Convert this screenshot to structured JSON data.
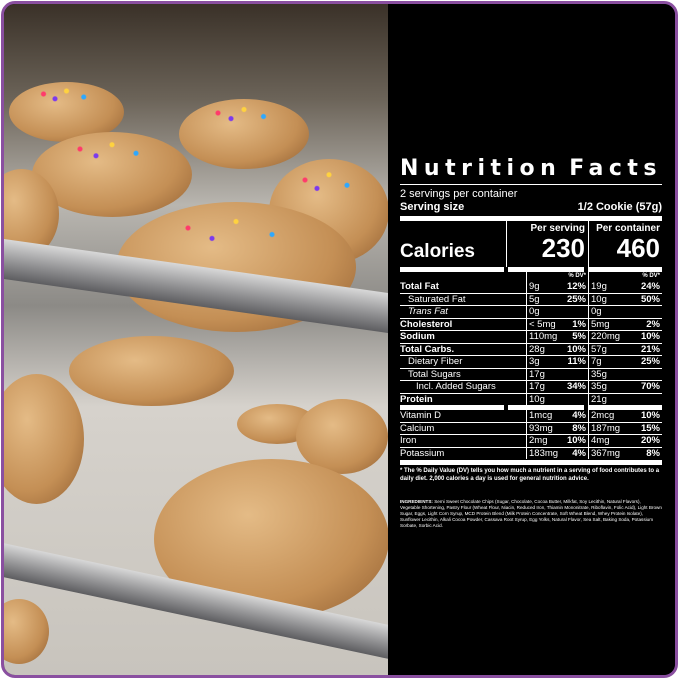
{
  "frame_color": "#8a4fa0",
  "label": {
    "title_left": "Nutrition",
    "title_right": "Facts",
    "servings_per_container": "2 servings per container",
    "serving_size_label": "Serving size",
    "serving_size_value": "1/2 Cookie (57g)",
    "per_serving_header": "Per serving",
    "per_container_header": "Per container",
    "calories_label": "Calories",
    "calories_per_serving": "230",
    "calories_per_container": "460",
    "dv_header": "% DV*",
    "rows": [
      {
        "name": "Total Fat",
        "s_amt": "9g",
        "s_dv": "12%",
        "c_amt": "19g",
        "c_dv": "24%"
      },
      {
        "name": "Saturated Fat",
        "s_amt": "5g",
        "s_dv": "25%",
        "c_amt": "10g",
        "c_dv": "50%"
      },
      {
        "name": "Trans Fat",
        "s_amt": "0g",
        "s_dv": "",
        "c_amt": "0g",
        "c_dv": ""
      },
      {
        "name": "Cholesterol",
        "s_amt": "< 5mg",
        "s_dv": "1%",
        "c_amt": "5mg",
        "c_dv": "2%"
      },
      {
        "name": "Sodium",
        "s_amt": "110mg",
        "s_dv": "5%",
        "c_amt": "220mg",
        "c_dv": "10%"
      },
      {
        "name": "Total Carbs.",
        "s_amt": "28g",
        "s_dv": "10%",
        "c_amt": "57g",
        "c_dv": "21%"
      },
      {
        "name": "Dietary Fiber",
        "s_amt": "3g",
        "s_dv": "11%",
        "c_amt": "7g",
        "c_dv": "25%"
      },
      {
        "name": "Total Sugars",
        "s_amt": "17g",
        "s_dv": "",
        "c_amt": "35g",
        "c_dv": ""
      },
      {
        "name": "Incl. Added Sugars",
        "s_amt": "17g",
        "s_dv": "34%",
        "c_amt": "35g",
        "c_dv": "70%"
      },
      {
        "name": "Protein",
        "s_amt": "10g",
        "s_dv": "",
        "c_amt": "21g",
        "c_dv": ""
      }
    ],
    "vitamins": [
      {
        "name": "Vitamin D",
        "s_amt": "1mcg",
        "s_dv": "4%",
        "c_amt": "2mcg",
        "c_dv": "10%"
      },
      {
        "name": "Calcium",
        "s_amt": "93mg",
        "s_dv": "8%",
        "c_amt": "187mg",
        "c_dv": "15%"
      },
      {
        "name": "Iron",
        "s_amt": "2mg",
        "s_dv": "10%",
        "c_amt": "4mg",
        "c_dv": "20%"
      },
      {
        "name": "Potassium",
        "s_amt": "183mg",
        "s_dv": "4%",
        "c_amt": "367mg",
        "c_dv": "8%"
      }
    ],
    "footnote": "* The % Daily Value (DV) tells you how much a nutrient in a serving of food contributes to a daily diet. 2,000 calories a day is used for general nutrition advice."
  },
  "ingredients": {
    "label": "INGREDIENTS:",
    "text": "Semi Sweet Chocolate Chips (Sugar, Chocolate, Cocoa Butter, Milkfat, Soy Lecithin, Natural Flavors), Vegetable Shortening, Pastry Flour (Wheat Flour, Niacin, Reduced Iron, Thiamin Mononitrate, Riboflavin, Folic Acid), Light Brown Sugar, Eggs, Light Corn Syrup, MCD Protein Blend (Milk Protein Concentrate, Soft Wheat Blend, Whey Protein Isolate), Sunflower Lecithin, Alkali Cocoa Powder, Cassava Root Syrup, Egg Yolks, Natural Flavor, Sea Salt, Baking Soda, Potassium Sorbate, Sorbic Acid."
  }
}
